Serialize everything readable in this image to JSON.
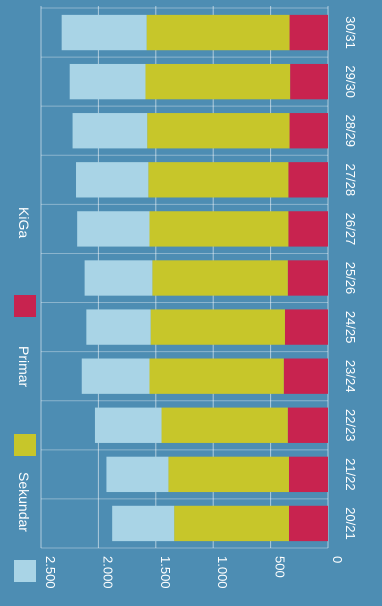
{
  "chart_data": {
    "type": "bar",
    "stacked": true,
    "orientation": "horizontal",
    "rotated": "90deg-clockwise",
    "title": "",
    "xlabel": "",
    "ylabel": "",
    "categories": [
      "20/21",
      "21/22",
      "22/23",
      "23/24",
      "24/25",
      "25/26",
      "26/27",
      "27/28",
      "28/29",
      "29/30",
      "30/31"
    ],
    "series": [
      {
        "name": "KiGa",
        "color": "#c8234f",
        "values": [
          340,
          340,
          350,
          385,
          375,
          350,
          345,
          345,
          335,
          330,
          335
        ]
      },
      {
        "name": "Primar",
        "color": "#c7c62a",
        "values": [
          1000,
          1050,
          1100,
          1170,
          1170,
          1180,
          1210,
          1220,
          1240,
          1260,
          1245
        ]
      },
      {
        "name": "Sekundar",
        "color": "#a9d4e6",
        "values": [
          540,
          540,
          580,
          590,
          560,
          590,
          630,
          630,
          650,
          660,
          740
        ]
      }
    ],
    "xticks": [
      "0",
      "500",
      "1.000",
      "1.500",
      "2.000",
      "2.500"
    ],
    "xlim": [
      0,
      2500
    ],
    "grid": true,
    "legend_position": "top"
  }
}
